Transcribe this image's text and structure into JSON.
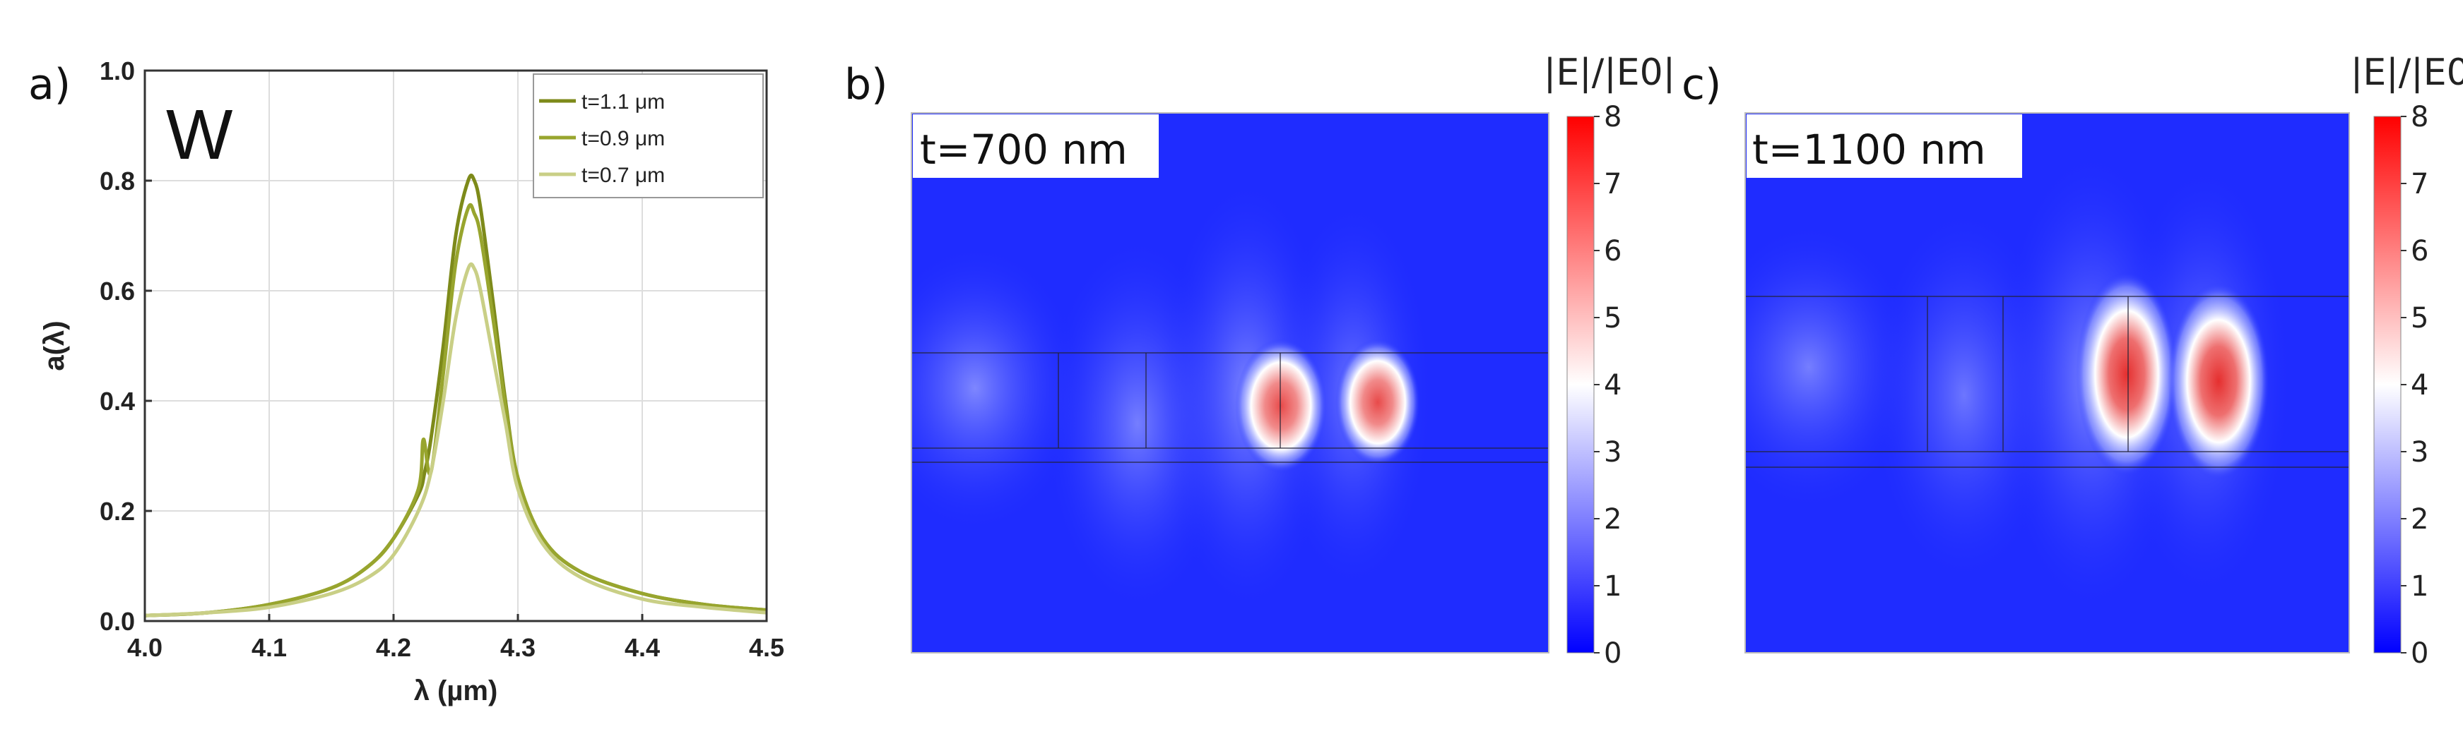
{
  "panels": {
    "a": {
      "label": "a)",
      "material": "W"
    },
    "b": {
      "label": "b)",
      "map_title": "t=700 nm"
    },
    "c": {
      "label": "c)",
      "map_title": "t=1100 nm"
    }
  },
  "colorbar": {
    "title": "|E|/|E0|",
    "ticks": [
      "8",
      "7",
      "6",
      "5",
      "4",
      "3",
      "2",
      "1",
      "0"
    ],
    "colors": [
      "#0000ff",
      "#ffffff",
      "#ff0000"
    ]
  },
  "chart_data": [
    {
      "type": "line",
      "panel": "a",
      "xlabel": "λ (µm)",
      "ylabel": "a(λ)",
      "xlim": [
        4.0,
        4.5
      ],
      "ylim": [
        0.0,
        1.0
      ],
      "xticks": [
        "4.0",
        "4.1",
        "4.2",
        "4.3",
        "4.4",
        "4.5"
      ],
      "yticks": [
        "0.0",
        "0.2",
        "0.4",
        "0.6",
        "0.8",
        "1.0"
      ],
      "legend_position": "top-right",
      "grid": true,
      "series": [
        {
          "name": "t=1.1 μm",
          "color": "#7d8a1a",
          "x": [
            4.0,
            4.05,
            4.1,
            4.15,
            4.18,
            4.2,
            4.22,
            4.225,
            4.23,
            4.24,
            4.25,
            4.26,
            4.265,
            4.27,
            4.28,
            4.29,
            4.3,
            4.32,
            4.35,
            4.4,
            4.45,
            4.5
          ],
          "y": [
            0.01,
            0.015,
            0.03,
            0.06,
            0.1,
            0.15,
            0.23,
            0.27,
            0.33,
            0.5,
            0.7,
            0.8,
            0.8,
            0.75,
            0.58,
            0.4,
            0.26,
            0.15,
            0.09,
            0.05,
            0.03,
            0.02
          ]
        },
        {
          "name": "t=0.9 μm",
          "color": "#98a52e",
          "x": [
            4.0,
            4.05,
            4.1,
            4.15,
            4.18,
            4.2,
            4.22,
            4.224,
            4.23,
            4.24,
            4.25,
            4.26,
            4.265,
            4.27,
            4.28,
            4.29,
            4.3,
            4.32,
            4.35,
            4.4,
            4.45,
            4.5
          ],
          "y": [
            0.01,
            0.015,
            0.03,
            0.06,
            0.1,
            0.15,
            0.24,
            0.33,
            0.27,
            0.45,
            0.65,
            0.75,
            0.74,
            0.7,
            0.55,
            0.39,
            0.26,
            0.15,
            0.09,
            0.05,
            0.03,
            0.02
          ]
        },
        {
          "name": "t=0.7 μm",
          "color": "#c9cf86",
          "x": [
            4.0,
            4.05,
            4.1,
            4.15,
            4.18,
            4.2,
            4.22,
            4.23,
            4.24,
            4.25,
            4.26,
            4.265,
            4.27,
            4.28,
            4.29,
            4.3,
            4.32,
            4.35,
            4.4,
            4.45,
            4.5
          ],
          "y": [
            0.01,
            0.015,
            0.025,
            0.05,
            0.08,
            0.12,
            0.2,
            0.27,
            0.4,
            0.55,
            0.64,
            0.64,
            0.6,
            0.48,
            0.36,
            0.24,
            0.14,
            0.08,
            0.04,
            0.025,
            0.015
          ]
        }
      ]
    },
    {
      "type": "heatmap",
      "panel": "b",
      "title": "t=700 nm",
      "colorbar_title": "|E|/|E0|",
      "zlim": [
        0,
        8
      ],
      "hotspots": [
        {
          "u": 0.58,
          "v": 0.49,
          "peak": 5.0
        },
        {
          "u": 0.73,
          "v": 0.49,
          "peak": 5.0
        }
      ]
    },
    {
      "type": "heatmap",
      "panel": "c",
      "title": "t=1100 nm",
      "colorbar_title": "|E|/|E0|",
      "zlim": [
        0,
        8
      ],
      "hotspots": [
        {
          "u": 0.58,
          "v": 0.5,
          "peak": 6.0
        },
        {
          "u": 0.72,
          "v": 0.5,
          "peak": 6.0
        }
      ]
    }
  ]
}
